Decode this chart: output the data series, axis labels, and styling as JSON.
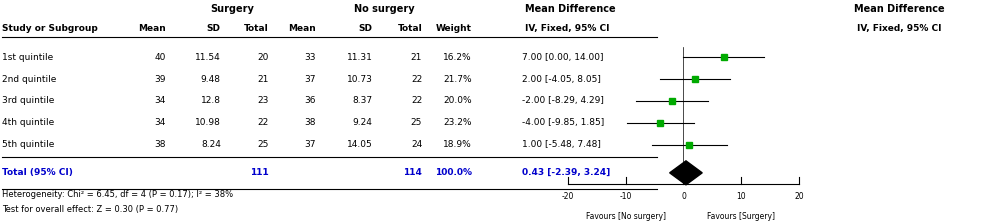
{
  "studies": [
    "1st quintile",
    "2nd quintile",
    "3rd quintile",
    "4th quintile",
    "5th quintile"
  ],
  "surgery_mean": [
    40,
    39,
    34,
    34,
    38
  ],
  "surgery_sd": [
    "11.54",
    "9.48",
    "12.8",
    "10.98",
    "8.24"
  ],
  "surgery_total": [
    20,
    21,
    23,
    22,
    25
  ],
  "nosurgery_mean": [
    33,
    37,
    36,
    38,
    37
  ],
  "nosurgery_sd": [
    "11.31",
    "10.73",
    "8.37",
    "9.24",
    "14.05"
  ],
  "nosurgery_total": [
    21,
    22,
    22,
    25,
    24
  ],
  "weight": [
    "16.2%",
    "21.7%",
    "20.0%",
    "23.2%",
    "18.9%"
  ],
  "md": [
    7.0,
    2.0,
    -2.0,
    -4.0,
    1.0
  ],
  "ci_low": [
    0.0,
    -4.05,
    -8.29,
    -9.85,
    -5.48
  ],
  "ci_high": [
    14.0,
    8.05,
    4.29,
    1.85,
    7.48
  ],
  "md_text": [
    "7.00 [0.00, 14.00]",
    "2.00 [-4.05, 8.05]",
    "-2.00 [-8.29, 4.29]",
    "-4.00 [-9.85, 1.85]",
    "1.00 [-5.48, 7.48]"
  ],
  "total_md": 0.43,
  "total_ci_low": -2.39,
  "total_ci_high": 3.24,
  "total_md_text": "0.43 [-2.39, 3.24]",
  "total_surgery": 111,
  "total_nosurgery": 114,
  "heterogeneity_text": "Heterogeneity: Chi² = 6.45, df = 4 (P = 0.17); I² = 38%",
  "overall_effect_text": "Test for overall effect: Z = 0.30 (P = 0.77)",
  "axis_min": -20,
  "axis_max": 20,
  "axis_ticks": [
    -20,
    -10,
    0,
    10,
    20
  ],
  "favour_left": "Favours [No surgery]",
  "favour_right": "Favours [Surgery]",
  "header_surgery": "Surgery",
  "header_nosurgery": "No surgery",
  "header_md": "Mean Difference",
  "header_md2": "IV, Fixed, 95% CI",
  "marker_color": "#00AA00",
  "diamond_color": "#000000",
  "line_color": "#000000",
  "header_color": "#000000",
  "total_color": "#0000CC",
  "bg_color": "#FFFFFF"
}
